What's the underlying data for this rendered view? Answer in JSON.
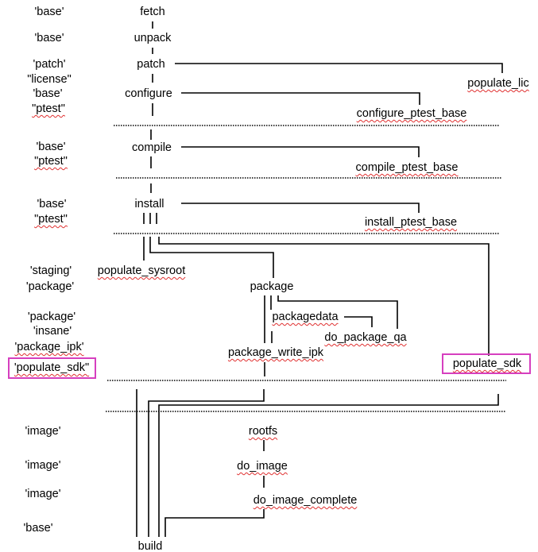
{
  "classes": {
    "fetch": "'base'",
    "unpack": "'base'",
    "patch": "'patch'",
    "license": "\"license\"",
    "configure_base": "'base'",
    "configure_ptest": "\"ptest\"",
    "compile_base": "'base'",
    "compile_ptest": "\"ptest\"",
    "install_base": "'base'",
    "install_ptest": "\"ptest\"",
    "staging": "'staging'",
    "package": "'package'",
    "package2": "'package'",
    "insane": "'insane'",
    "package_ipk": "'package_ipk'",
    "populate_sdk": "'populate_sdk\"",
    "image1": "'image'",
    "image2": "'image'",
    "image3": "'image'",
    "build_base": "'base'"
  },
  "tasks": {
    "fetch": "fetch",
    "unpack": "unpack",
    "patch": "patch",
    "configure": "configure",
    "compile": "compile",
    "install": "install",
    "populate_lic": "populate_lic",
    "configure_ptest_base": "configure_ptest_base",
    "compile_ptest_base": "compile_ptest_base",
    "install_ptest_base": "install_ptest_base",
    "populate_sysroot": "populate_sysroot",
    "package": "package",
    "packagedata": "packagedata",
    "do_package_qa": "do_package_qa",
    "package_write_ipk": "package_write_ipk",
    "populate_sdk": "populate_sdk",
    "rootfs": "rootfs",
    "do_image": "do_image",
    "do_image_complete": "do_image_complete",
    "build": "build"
  },
  "colors": {
    "highlight_box": "#d63fbf",
    "spellcheck_underline": "#e03030"
  }
}
